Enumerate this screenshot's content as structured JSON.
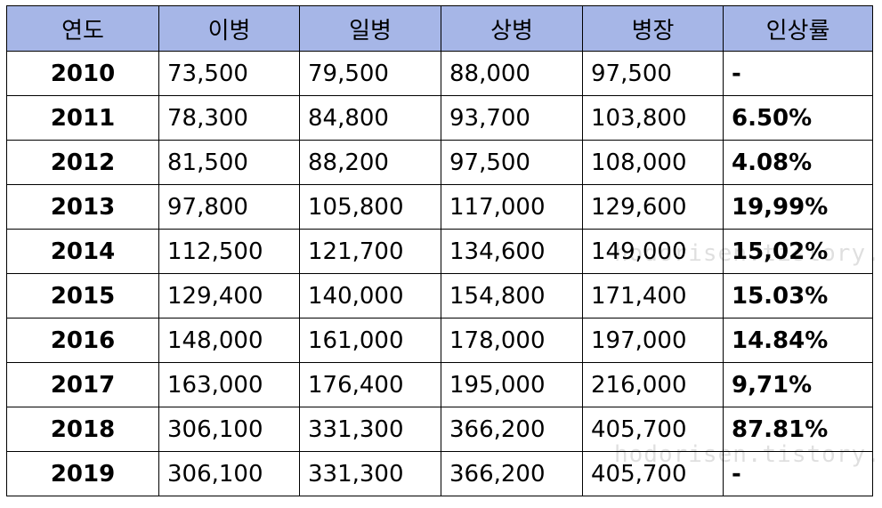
{
  "table": {
    "headers": [
      "연도",
      "이병",
      "일병",
      "상병",
      "병장",
      "인상률"
    ],
    "rows": [
      {
        "year": "2010",
        "pvt": "73,500",
        "pfc": "79,500",
        "cpl": "88,000",
        "sgt": "97,500",
        "rate": "-"
      },
      {
        "year": "2011",
        "pvt": "78,300",
        "pfc": "84,800",
        "cpl": "93,700",
        "sgt": "103,800",
        "rate": "6.50%"
      },
      {
        "year": "2012",
        "pvt": "81,500",
        "pfc": "88,200",
        "cpl": "97,500",
        "sgt": "108,000",
        "rate": "4.08%"
      },
      {
        "year": "2013",
        "pvt": "97,800",
        "pfc": "105,800",
        "cpl": "117,000",
        "sgt": "129,600",
        "rate": "19,99%"
      },
      {
        "year": "2014",
        "pvt": "112,500",
        "pfc": "121,700",
        "cpl": "134,600",
        "sgt": "149,000",
        "rate": "15,02%"
      },
      {
        "year": "2015",
        "pvt": "129,400",
        "pfc": "140,000",
        "cpl": "154,800",
        "sgt": "171,400",
        "rate": "15.03%"
      },
      {
        "year": "2016",
        "pvt": "148,000",
        "pfc": "161,000",
        "cpl": "178,000",
        "sgt": "197,000",
        "rate": "14.84%"
      },
      {
        "year": "2017",
        "pvt": "163,000",
        "pfc": "176,400",
        "cpl": "195,000",
        "sgt": "216,000",
        "rate": "9,71%"
      },
      {
        "year": "2018",
        "pvt": "306,100",
        "pfc": "331,300",
        "cpl": "366,200",
        "sgt": "405,700",
        "rate": "87.81%"
      },
      {
        "year": "2019",
        "pvt": "306,100",
        "pfc": "331,300",
        "cpl": "366,200",
        "sgt": "405,700",
        "rate": "-"
      }
    ]
  },
  "watermark": {
    "text_a": "hodorisen.tistory.com",
    "text_b": "hodorisen.tistory.com"
  },
  "colors": {
    "header_bg": "#a6b6e7",
    "border": "#000000"
  }
}
